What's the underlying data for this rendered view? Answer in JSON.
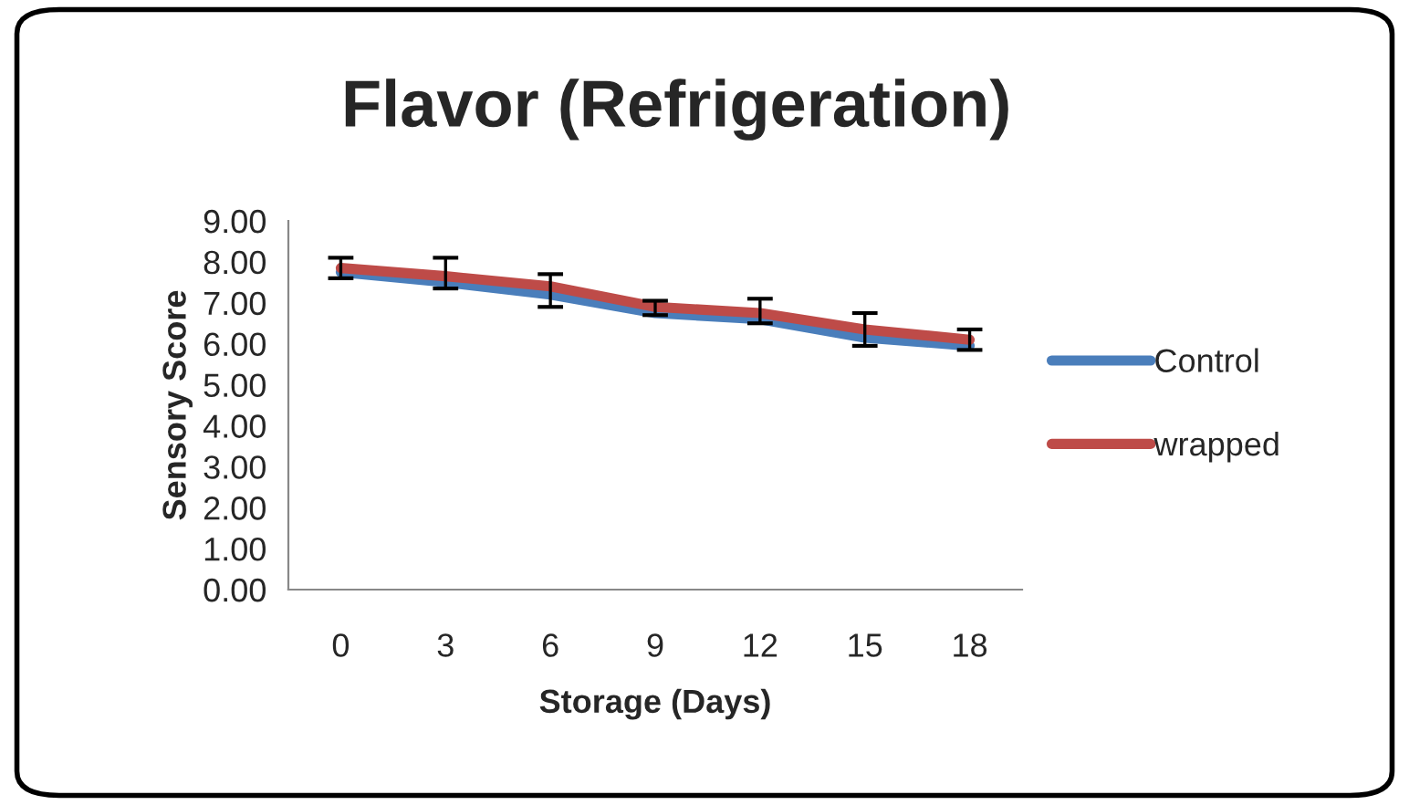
{
  "chart_data": {
    "type": "line",
    "title": "Flavor (Refrigeration)",
    "xlabel": "Storage (Days)",
    "ylabel": "Sensory Score",
    "categories": [
      "0",
      "3",
      "6",
      "9",
      "12",
      "15",
      "18"
    ],
    "series": [
      {
        "name": "Control",
        "color": "#4a7ebb",
        "values": [
          7.75,
          7.5,
          7.2,
          6.75,
          6.6,
          6.15,
          5.95
        ]
      },
      {
        "name": "wrapped",
        "color": "#be4b48",
        "values": [
          7.85,
          7.65,
          7.4,
          6.9,
          6.75,
          6.35,
          6.1
        ],
        "errors": [
          [
            7.6,
            8.1
          ],
          [
            7.35,
            8.1
          ],
          [
            6.9,
            7.7
          ],
          [
            6.7,
            7.05
          ],
          [
            6.5,
            7.1
          ],
          [
            5.95,
            6.75
          ],
          [
            5.85,
            6.35
          ]
        ]
      }
    ],
    "ylim": [
      0,
      9
    ],
    "yticks": [
      {
        "value": 0,
        "label": "0.00"
      },
      {
        "value": 1,
        "label": "1.00"
      },
      {
        "value": 2,
        "label": "2.00"
      },
      {
        "value": 3,
        "label": "3.00"
      },
      {
        "value": 4,
        "label": "4.00"
      },
      {
        "value": 5,
        "label": "5.00"
      },
      {
        "value": 6,
        "label": "6.00"
      },
      {
        "value": 7,
        "label": "7.00"
      },
      {
        "value": 8,
        "label": "8.00"
      },
      {
        "value": 9,
        "label": "9.00"
      }
    ],
    "grid": false,
    "legend": "right",
    "marker": "none",
    "line_style": "solid"
  }
}
